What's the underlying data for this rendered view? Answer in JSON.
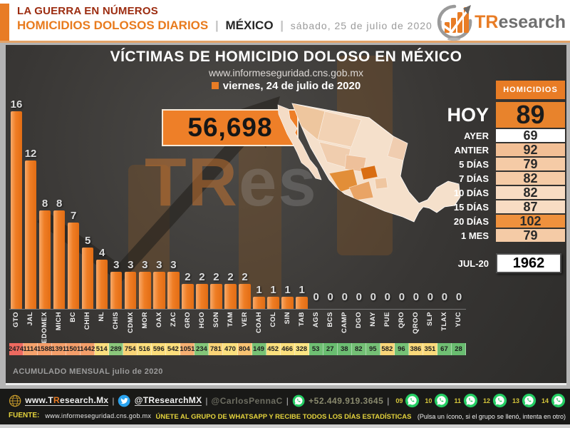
{
  "header": {
    "kicker": "LA GUERRA EN NÚMEROS",
    "title": "HOMICIDIOS DOLOSOS DIARIOS",
    "separator": "|",
    "country": "MÉXICO",
    "date": "sábado, 25 de julio de 2020",
    "logo": {
      "brand_accent": "TR",
      "brand_rest": "esearch"
    }
  },
  "panel": {
    "title": "VÍCTIMAS DE HOMICIDIO DOLOSO EN MÉXICO",
    "source_url": "www.informeseguridad.cns.gob.mx",
    "report_date": "viernes, 24 de julio de 2020",
    "total_accumulated": "56,698",
    "watermark_accent": "TR",
    "watermark_rest": "es",
    "accumulated_caption": "ACUMULADO MENSUAL julio de 2020"
  },
  "summary_table": {
    "header": "HOMICIDIOS",
    "rows": [
      {
        "label": "HOY",
        "value": "89",
        "bg": "#e8832c",
        "big": true
      },
      {
        "label": "AYER",
        "value": "69",
        "bg": "#ffffff"
      },
      {
        "label": "ANTIER",
        "value": "92",
        "bg": "#f2bf95"
      },
      {
        "label": "5 DÍAS",
        "value": "79",
        "bg": "#f5cba6"
      },
      {
        "label": "7 DÍAS",
        "value": "82",
        "bg": "#f5cba6"
      },
      {
        "label": "10 DÍAS",
        "value": "82",
        "bg": "#f8dcc3"
      },
      {
        "label": "15 DÍAS",
        "value": "87",
        "bg": "#f8dcc3"
      },
      {
        "label": "20 DÍAS",
        "value": "102",
        "bg": "#ef913d"
      },
      {
        "label": "1 MES",
        "value": "79",
        "bg": "#f5cba6"
      }
    ],
    "month_row": {
      "label": "JUL-20",
      "value": "1962"
    }
  },
  "chart_data": {
    "type": "bar",
    "title": "VÍCTIMAS DE HOMICIDIO DOLOSO EN MÉXICO — viernes, 24 de julio de 2020",
    "xlabel": "",
    "ylabel": "",
    "ylim": [
      0,
      16
    ],
    "grid": false,
    "bar_color": "#ef7d24",
    "categories": [
      "GTO",
      "JAL",
      "EDOMEX",
      "MICH",
      "BC",
      "CHIH",
      "NL",
      "CHIS",
      "CDMX",
      "MOR",
      "OAX",
      "ZAC",
      "GRO",
      "HGO",
      "SON",
      "TAM",
      "VER",
      "COAH",
      "COL",
      "SIN",
      "TAB",
      "AGS",
      "BCS",
      "CAMP",
      "DGO",
      "NAY",
      "PUE",
      "QRO",
      "QROO",
      "SLP",
      "TLAX",
      "YUC"
    ],
    "values": [
      16,
      12,
      8,
      8,
      7,
      5,
      4,
      3,
      3,
      3,
      3,
      3,
      2,
      2,
      2,
      2,
      2,
      1,
      1,
      1,
      1,
      0,
      0,
      0,
      0,
      0,
      0,
      0,
      0,
      0,
      0,
      0
    ],
    "monthly_series": {
      "name": "ACUMULADO MENSUAL julio de 2020",
      "values": [
        2474,
        1114,
        1588,
        1391,
        1501,
        1442,
        514,
        289,
        754,
        516,
        596,
        542,
        1051,
        234,
        781,
        470,
        804,
        149,
        452,
        466,
        328,
        53,
        27,
        38,
        82,
        95,
        582,
        96,
        386,
        351,
        67,
        28
      ],
      "cell_colors": [
        "#ee6a60",
        "#f5a26c",
        "#f49c68",
        "#f5a06b",
        "#f49e6a",
        "#f49f6a",
        "#fbdf7d",
        "#8bc87c",
        "#f9d477",
        "#fbde7c",
        "#fbdd7b",
        "#fbde7c",
        "#f6af72",
        "#83c679",
        "#f9d377",
        "#fbe07e",
        "#f8c373",
        "#77c275",
        "#fbe07e",
        "#fbe07e",
        "#fbe583",
        "#6fbf73",
        "#69bd70",
        "#6cbe72",
        "#73c075",
        "#76c176",
        "#f9d67a",
        "#76c176",
        "#fad97b",
        "#fada7b",
        "#70bf73",
        "#69bd70"
      ]
    }
  },
  "footer": {
    "website": {
      "prefix": "www.T",
      "accent": "R",
      "suffix": "esearch.Mx"
    },
    "separator": "|",
    "twitter_handle": "@TResearchMX",
    "author_handle": "@CarlosPennaC",
    "phone": "+52.449.919.3645",
    "whatsapp_groups": [
      "09",
      "10",
      "11",
      "12",
      "13",
      "14"
    ],
    "source_label": "FUENTE:",
    "source_url": "www.informeseguridad.cns.gob.mx",
    "cta_bold": "ÚNETE AL GRUPO DE WHATSAPP Y RECIBE TODOS LOS DÍAS ESTADÍSTICAS",
    "cta_note": "(Pulsa un ícono, si el grupo se llenó, intenta en otro)"
  },
  "colors": {
    "accent_orange": "#e87c25",
    "panel_dark": "#383634",
    "header_red": "#9c2c10",
    "footer_yellow": "#e5d43c",
    "whatsapp_green": "#24cc63",
    "twitter_blue": "#2aa3ef",
    "map_base": "#f5e0cb",
    "map_high": "#d96d12"
  }
}
